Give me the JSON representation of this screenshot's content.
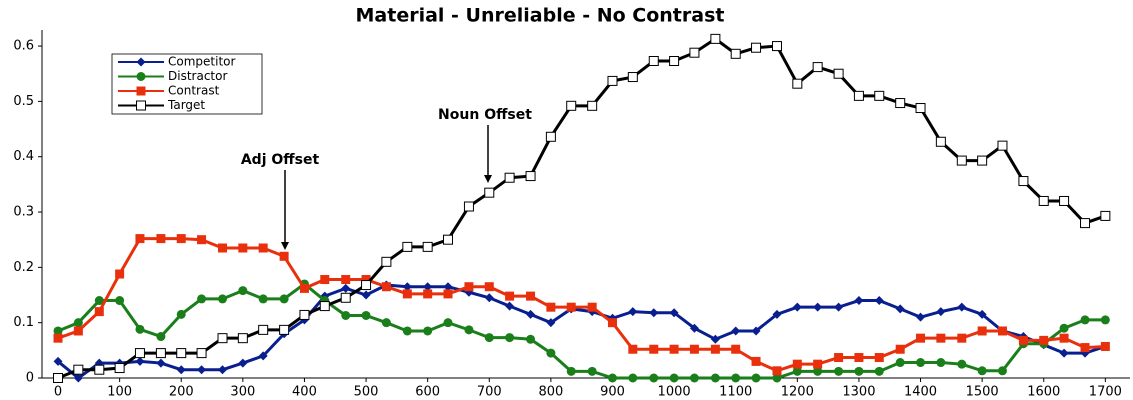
{
  "chart_data": {
    "type": "line",
    "title": "Material - Unreliable - No Contrast",
    "x": [
      0,
      33,
      67,
      100,
      133,
      167,
      200,
      233,
      267,
      300,
      333,
      367,
      400,
      433,
      467,
      500,
      533,
      567,
      600,
      633,
      667,
      700,
      733,
      767,
      800,
      833,
      867,
      900,
      933,
      967,
      1000,
      1033,
      1067,
      1100,
      1133,
      1167,
      1200,
      1233,
      1267,
      1300,
      1333,
      1367,
      1400,
      1433,
      1467,
      1500,
      1533,
      1567,
      1600,
      1633,
      1667,
      1700
    ],
    "xlim": [
      -26,
      1740
    ],
    "xticks": [
      0,
      100,
      200,
      300,
      400,
      500,
      600,
      700,
      800,
      900,
      1000,
      1100,
      1200,
      1300,
      1400,
      1500,
      1600,
      1700
    ],
    "ylim": [
      0,
      0.62
    ],
    "yticks": [
      0,
      0.1,
      0.2,
      0.3,
      0.4,
      0.5,
      0.6
    ],
    "legend": "upper left",
    "annotations": [
      "Adj Offset",
      "Noun Offset"
    ],
    "series": [
      {
        "name": "Competitor",
        "color": "#0a1f8f",
        "marker": "diamond",
        "values": [
          0.03,
          0.0,
          0.027,
          0.027,
          0.03,
          0.027,
          0.015,
          0.015,
          0.015,
          0.027,
          0.04,
          0.08,
          0.105,
          0.148,
          0.162,
          0.15,
          0.168,
          0.165,
          0.165,
          0.165,
          0.155,
          0.145,
          0.13,
          0.115,
          0.1,
          0.125,
          0.12,
          0.108,
          0.12,
          0.118,
          0.118,
          0.09,
          0.07,
          0.085,
          0.085,
          0.115,
          0.128,
          0.128,
          0.128,
          0.14,
          0.14,
          0.125,
          0.11,
          0.12,
          0.128,
          0.115,
          0.085,
          0.075,
          0.06,
          0.045,
          0.045,
          0.057
        ]
      },
      {
        "name": "Distractor",
        "color": "#1a7f1a",
        "marker": "circle",
        "values": [
          0.085,
          0.1,
          0.14,
          0.14,
          0.088,
          0.075,
          0.115,
          0.143,
          0.143,
          0.158,
          0.143,
          0.143,
          0.17,
          0.14,
          0.113,
          0.113,
          0.1,
          0.085,
          0.085,
          0.1,
          0.087,
          0.073,
          0.073,
          0.07,
          0.045,
          0.012,
          0.012,
          0,
          0,
          0,
          0,
          0,
          0,
          0,
          0,
          0,
          0.012,
          0.012,
          0.012,
          0.012,
          0.012,
          0.028,
          0.028,
          0.028,
          0.025,
          0.013,
          0.013,
          0.062,
          0.062,
          0.09,
          0.105,
          0.105
        ]
      },
      {
        "name": "Contrast",
        "color": "#e8300c",
        "marker": "square",
        "values": [
          0.072,
          0.085,
          0.12,
          0.188,
          0.252,
          0.252,
          0.252,
          0.25,
          0.235,
          0.235,
          0.235,
          0.22,
          0.162,
          0.178,
          0.178,
          0.178,
          0.165,
          0.152,
          0.152,
          0.152,
          0.165,
          0.165,
          0.148,
          0.148,
          0.128,
          0.128,
          0.128,
          0.1,
          0.052,
          0.052,
          0.052,
          0.052,
          0.052,
          0.052,
          0.03,
          0.013,
          0.025,
          0.025,
          0.037,
          0.037,
          0.037,
          0.052,
          0.072,
          0.072,
          0.072,
          0.085,
          0.085,
          0.068,
          0.068,
          0.072,
          0.055,
          0.057
        ]
      },
      {
        "name": "Target",
        "color": "#000000",
        "marker": "open-square",
        "values": [
          0,
          0.015,
          0.015,
          0.018,
          0.045,
          0.045,
          0.045,
          0.045,
          0.072,
          0.072,
          0.087,
          0.087,
          0.114,
          0.13,
          0.145,
          0.168,
          0.21,
          0.237,
          0.237,
          0.25,
          0.31,
          0.335,
          0.362,
          0.365,
          0.436,
          0.492,
          0.492,
          0.537,
          0.544,
          0.573,
          0.573,
          0.588,
          0.613,
          0.586,
          0.597,
          0.6,
          0.532,
          0.562,
          0.55,
          0.51,
          0.51,
          0.497,
          0.488,
          0.427,
          0.393,
          0.393,
          0.42,
          0.356,
          0.32,
          0.32,
          0.28,
          0.293
        ]
      }
    ]
  }
}
